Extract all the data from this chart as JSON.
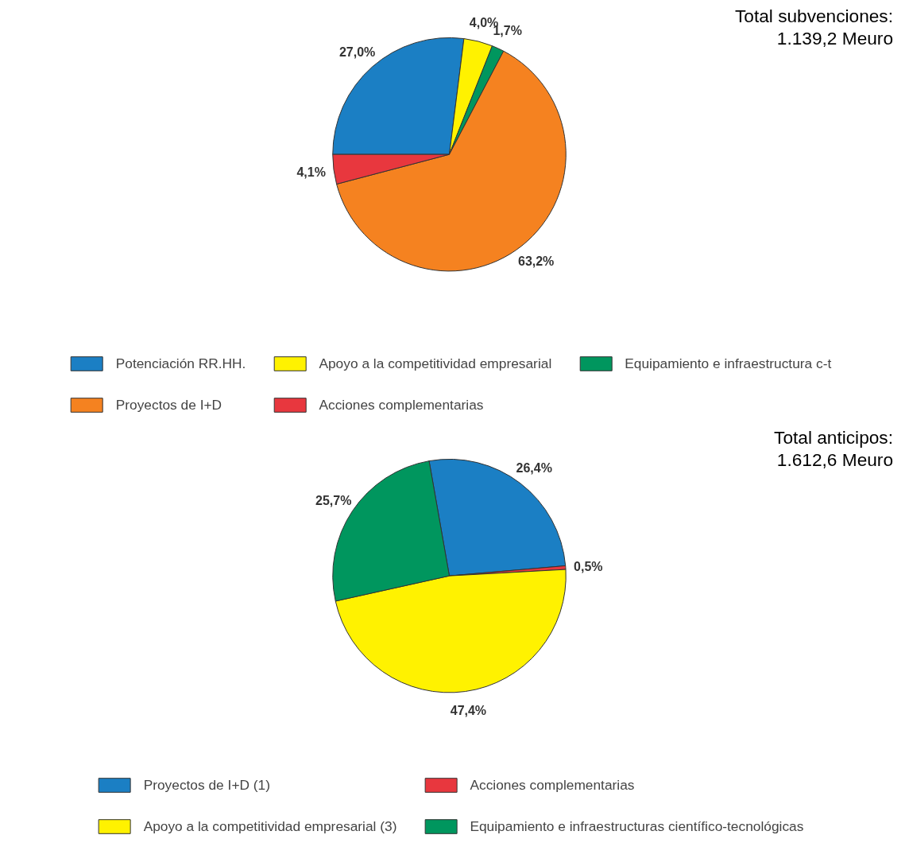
{
  "chart_data": [
    {
      "type": "pie",
      "categories": [
        "Potenciación RR.HH.",
        "Apoyo a la competitividad empresarial",
        "Equipamiento e infraestructura c-t",
        "Proyectos de I+D",
        "Acciones complementarias"
      ],
      "values": [
        27.0,
        4.0,
        1.7,
        63.2,
        4.1
      ],
      "colors": [
        "#1b7fc4",
        "#fff200",
        "#00965e",
        "#f58220",
        "#e8373e"
      ],
      "value_labels": [
        "27,0%",
        "4,0%",
        "1,7%",
        "63,2%",
        "4,1%"
      ],
      "annotations": [
        "Total subvenciones:",
        "1.139,2 Meuro"
      ],
      "legend": "bottom"
    },
    {
      "type": "pie",
      "categories": [
        "Proyectos de I+D (1)",
        "Acciones complementarias",
        "Apoyo a la competitividad empresarial (3)",
        "Equipamiento e infraestructuras científico-tecnológicas"
      ],
      "values": [
        26.4,
        0.5,
        47.4,
        25.7
      ],
      "colors": [
        "#1b7fc4",
        "#e8373e",
        "#fff200",
        "#00965e"
      ],
      "value_labels": [
        "26,4%",
        "0,5%",
        "47,4%",
        "25,7%"
      ],
      "annotations": [
        "Total anticipos:",
        "1.612,6 Meuro"
      ],
      "legend": "bottom"
    }
  ]
}
